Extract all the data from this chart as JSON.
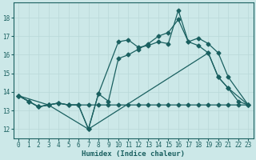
{
  "xlabel": "Humidex (Indice chaleur)",
  "bg_color": "#cce8e8",
  "grid_color": "#b8d8d8",
  "line_color": "#1a6060",
  "xlim": [
    -0.5,
    23.5
  ],
  "ylim": [
    11.5,
    18.8
  ],
  "yticks": [
    12,
    13,
    14,
    15,
    16,
    17,
    18
  ],
  "xticks": [
    0,
    1,
    2,
    3,
    4,
    5,
    6,
    7,
    8,
    9,
    10,
    11,
    12,
    13,
    14,
    15,
    16,
    17,
    18,
    19,
    20,
    21,
    22,
    23
  ],
  "series1_x": [
    0,
    1,
    2,
    3,
    4,
    5,
    6,
    7,
    8,
    9,
    10,
    11,
    12,
    13,
    14,
    15,
    16,
    17,
    18,
    19,
    20,
    21,
    22,
    23
  ],
  "series1_y": [
    13.8,
    13.5,
    13.2,
    13.3,
    13.4,
    13.3,
    13.3,
    13.3,
    13.3,
    13.3,
    13.3,
    13.3,
    13.3,
    13.3,
    13.3,
    13.3,
    13.3,
    13.3,
    13.3,
    13.3,
    13.3,
    13.3,
    13.3,
    13.3
  ],
  "series2_x": [
    0,
    1,
    2,
    3,
    4,
    5,
    6,
    7,
    8,
    9,
    10,
    11,
    12,
    13,
    14,
    15,
    16,
    17,
    18,
    19,
    20,
    21,
    22,
    23
  ],
  "series2_y": [
    13.8,
    13.5,
    13.2,
    13.3,
    13.4,
    13.3,
    13.3,
    12.0,
    13.9,
    13.5,
    15.8,
    16.0,
    16.3,
    16.6,
    17.0,
    17.2,
    17.9,
    16.7,
    16.5,
    16.1,
    14.8,
    14.2,
    13.5,
    13.3
  ],
  "series3_x": [
    0,
    1,
    2,
    3,
    4,
    5,
    6,
    7,
    8,
    10,
    11,
    12,
    13,
    14,
    15,
    16,
    17,
    18,
    19,
    20,
    21,
    23
  ],
  "series3_y": [
    13.8,
    13.5,
    13.2,
    13.3,
    13.4,
    13.3,
    13.3,
    12.0,
    13.9,
    16.7,
    16.8,
    16.4,
    16.5,
    16.7,
    16.6,
    18.4,
    16.7,
    16.9,
    16.6,
    16.1,
    14.8,
    13.3
  ],
  "series4_x": [
    0,
    3,
    7,
    19,
    20,
    21,
    23
  ],
  "series4_y": [
    13.8,
    13.3,
    12.0,
    16.1,
    14.8,
    14.2,
    13.3
  ]
}
